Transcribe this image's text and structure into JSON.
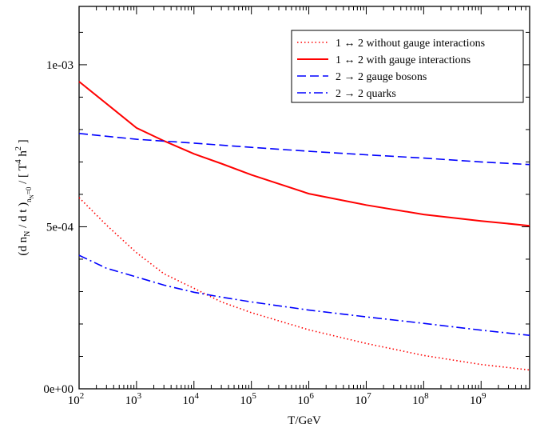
{
  "chart_data": {
    "type": "line",
    "xlabel": "T/GeV",
    "ylabel": {
      "parts": [
        "(d n",
        "N",
        " / d t )",
        "n",
        "N",
        "=0",
        " / [ T",
        "4",
        " h",
        "2",
        " ]"
      ]
    },
    "x_scale": "log",
    "x_range": [
      100,
      7000000000
    ],
    "x_ticks": [
      {
        "value": 100,
        "base": "10",
        "exp": "2"
      },
      {
        "value": 1000,
        "base": "10",
        "exp": "3"
      },
      {
        "value": 10000,
        "base": "10",
        "exp": "4"
      },
      {
        "value": 100000,
        "base": "10",
        "exp": "5"
      },
      {
        "value": 1000000,
        "base": "10",
        "exp": "6"
      },
      {
        "value": 10000000,
        "base": "10",
        "exp": "7"
      },
      {
        "value": 100000000,
        "base": "10",
        "exp": "8"
      },
      {
        "value": 1000000000,
        "base": "10",
        "exp": "9"
      }
    ],
    "y_range": [
      0,
      0.00118
    ],
    "y_ticks": [
      {
        "value": 0,
        "label": "0e+00"
      },
      {
        "value": 0.0005,
        "label": "5e-04"
      },
      {
        "value": 0.001,
        "label": "1e-03"
      }
    ],
    "grid": false,
    "legend_position": "top-right",
    "series": [
      {
        "name": "1 ↔ 2 without gauge interactions",
        "color": "#ff0000",
        "style": "dotted",
        "x": [
          100,
          300,
          1000,
          3000,
          10000,
          30000,
          100000,
          1000000,
          10000000,
          100000000,
          1000000000,
          7000000000
        ],
        "y": [
          0.00059,
          0.000505,
          0.00042,
          0.000355,
          0.00031,
          0.000268,
          0.000235,
          0.000182,
          0.00014,
          0.000103,
          7.5e-05,
          5.8e-05
        ]
      },
      {
        "name": "1 ↔ 2 with gauge interactions",
        "color": "#ff0000",
        "style": "solid",
        "x": [
          100,
          400,
          1000,
          3000,
          10000,
          30000,
          100000,
          1000000,
          10000000,
          100000000,
          1000000000,
          7000000000
        ],
        "y": [
          0.000948,
          0.000862,
          0.000805,
          0.000765,
          0.000725,
          0.000695,
          0.00066,
          0.000602,
          0.000567,
          0.000538,
          0.000518,
          0.000503
        ]
      },
      {
        "name": "2 → 2 gauge bosons",
        "color": "#0000ff",
        "style": "dashed",
        "x": [
          100,
          1000,
          10000,
          100000,
          1000000,
          10000000,
          100000000,
          1000000000,
          7000000000
        ],
        "y": [
          0.000788,
          0.00077,
          0.000758,
          0.000745,
          0.000733,
          0.000722,
          0.000712,
          0.0007,
          0.000692
        ]
      },
      {
        "name": "2 → 2 quarks",
        "color": "#0000ff",
        "style": "dashdot",
        "x": [
          100,
          300,
          1000,
          3000,
          10000,
          30000,
          100000,
          1000000,
          10000000,
          100000000,
          1000000000,
          7000000000
        ],
        "y": [
          0.000412,
          0.000372,
          0.000345,
          0.00032,
          0.000298,
          0.000283,
          0.000268,
          0.000243,
          0.000222,
          0.000202,
          0.000181,
          0.000165
        ]
      }
    ]
  }
}
